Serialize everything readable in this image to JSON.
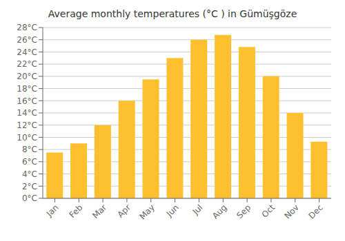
{
  "chart_data": {
    "type": "bar",
    "title": "Average monthly temperatures (°C ) in Gümüşgöze",
    "categories": [
      "Jan",
      "Feb",
      "Mar",
      "Apr",
      "May",
      "Jun",
      "Jul",
      "Aug",
      "Sep",
      "Oct",
      "Nov",
      "Dec"
    ],
    "values": [
      7.5,
      9.0,
      12.0,
      16.0,
      19.5,
      23.0,
      26.0,
      26.8,
      24.8,
      20.0,
      14.0,
      9.3
    ],
    "color": "#FFC030",
    "ylim": [
      0,
      28
    ],
    "yticks": [
      {
        "value": 0,
        "label": "0°C"
      },
      {
        "value": 2,
        "label": "2°C"
      },
      {
        "value": 4,
        "label": "4°C"
      },
      {
        "value": 6,
        "label": "6°C"
      },
      {
        "value": 8,
        "label": "8°C"
      },
      {
        "value": 10,
        "label": "10°C"
      },
      {
        "value": 12,
        "label": "12°C"
      },
      {
        "value": 14,
        "label": "14°C"
      },
      {
        "value": 16,
        "label": "16°C"
      },
      {
        "value": 18,
        "label": "18°C"
      },
      {
        "value": 20,
        "label": "20°C"
      },
      {
        "value": 22,
        "label": "22°C"
      },
      {
        "value": 24,
        "label": "24°C"
      },
      {
        "value": 26,
        "label": "26°C"
      },
      {
        "value": 28,
        "label": "28°C"
      }
    ],
    "grid": true
  }
}
